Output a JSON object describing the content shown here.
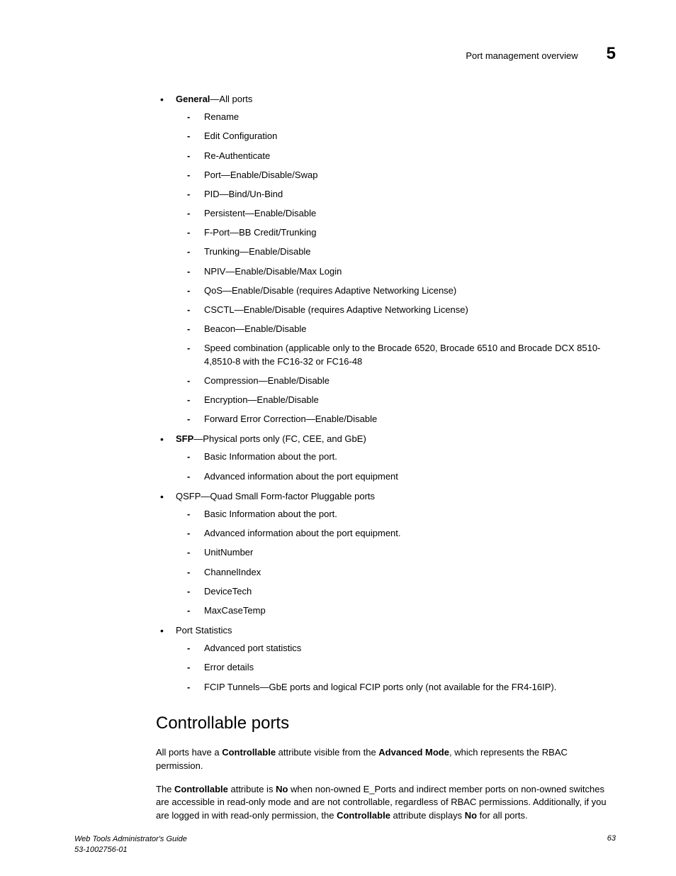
{
  "header": {
    "section_title": "Port management overview",
    "chapter_number": "5"
  },
  "bullets": {
    "general": {
      "label": "General",
      "suffix": "—All ports",
      "items": [
        "Rename",
        "Edit Configuration",
        "Re-Authenticate",
        "Port—Enable/Disable/Swap",
        "PID—Bind/Un-Bind",
        "Persistent—Enable/Disable",
        "F-Port—BB Credit/Trunking",
        "Trunking—Enable/Disable",
        "NPIV—Enable/Disable/Max Login",
        "QoS—Enable/Disable (requires Adaptive Networking License)",
        "CSCTL—Enable/Disable (requires Adaptive Networking License)",
        "Beacon—Enable/Disable",
        "Speed combination (applicable only to the Brocade 6520, Brocade 6510 and Brocade DCX 8510-4,8510-8 with the FC16-32 or FC16-48",
        "Compression—Enable/Disable",
        "Encryption—Enable/Disable",
        "Forward Error Correction—Enable/Disable"
      ]
    },
    "sfp": {
      "label": "SFP",
      "suffix": "—Physical ports only (FC, CEE, and GbE)",
      "items": [
        "Basic Information about the port.",
        "Advanced information about the port equipment"
      ]
    },
    "qsfp": {
      "label": "QSFP—Quad Small Form-factor Pluggable ports",
      "items": [
        "Basic Information about the port.",
        "Advanced information about the port equipment.",
        "UnitNumber",
        "ChannelIndex",
        "DeviceTech",
        "MaxCaseTemp"
      ]
    },
    "portstats": {
      "label": "Port Statistics",
      "items": [
        "Advanced port statistics",
        "Error details",
        "FCIP Tunnels—GbE ports and logical FCIP ports only (not available for the FR4-16IP)."
      ]
    }
  },
  "section": {
    "title": "Controllable ports",
    "para1_pre": "All ports have a ",
    "para1_b1": "Controllable",
    "para1_mid": " attribute visible from the ",
    "para1_b2": "Advanced Mode",
    "para1_post": ", which represents the RBAC permission.",
    "para2_pre": "The ",
    "para2_b1": "Controllable",
    "para2_mid1": " attribute is ",
    "para2_b2": "No",
    "para2_mid2": " when non-owned E_Ports and indirect member ports on non-owned switches are accessible in read-only mode and are not controllable, regardless of RBAC permissions. Additionally, if you are logged in with read-only permission, the ",
    "para2_b3": "Controllable",
    "para2_mid3": " attribute displays ",
    "para2_b4": "No",
    "para2_post": " for all ports."
  },
  "footer": {
    "guide": "Web Tools Administrator's Guide",
    "docnum": "53-1002756-01",
    "page": "63"
  }
}
